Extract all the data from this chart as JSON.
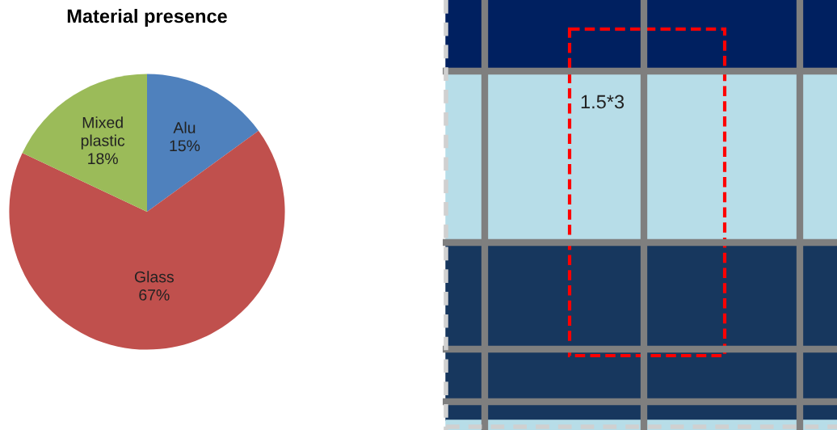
{
  "chart_data": [
    {
      "type": "pie",
      "title": "Material presence",
      "categories": [
        "Alu",
        "Glass",
        "Mixed plastic"
      ],
      "values": [
        15,
        67,
        18
      ],
      "colors": [
        "#4f81bd",
        "#c0504d",
        "#9bbb59"
      ],
      "value_labels": [
        "15%",
        "67%",
        "18%"
      ]
    },
    {
      "type": "other",
      "annotations": [
        "1.5*3"
      ]
    }
  ]
}
